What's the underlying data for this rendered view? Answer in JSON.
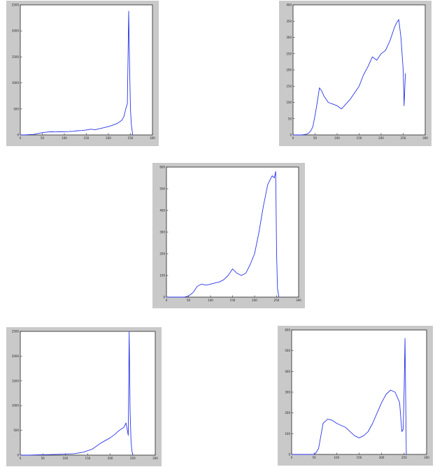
{
  "colors": {
    "line": "#2a35e8",
    "panel": "#c9c9c9",
    "plot_bg": "#ffffff",
    "axis": "#222222"
  },
  "chart_data": [
    {
      "type": "line",
      "xlim": [
        0,
        300
      ],
      "ylim": [
        0,
        2500
      ],
      "xticks": [
        "0",
        "50",
        "100",
        "150",
        "200",
        "250",
        "300"
      ],
      "yticks": [
        "0",
        "500",
        "1000",
        "1500",
        "2000",
        "2500"
      ],
      "x": [
        0,
        10,
        20,
        30,
        40,
        50,
        60,
        70,
        80,
        90,
        100,
        110,
        120,
        130,
        140,
        150,
        160,
        170,
        180,
        190,
        200,
        210,
        220,
        230,
        235,
        240,
        243,
        245,
        246,
        248,
        250,
        252,
        255
      ],
      "y": [
        0,
        0,
        5,
        10,
        25,
        45,
        55,
        60,
        58,
        60,
        62,
        65,
        70,
        80,
        85,
        95,
        110,
        100,
        120,
        140,
        160,
        190,
        220,
        280,
        350,
        520,
        600,
        1700,
        2380,
        1400,
        500,
        200,
        0
      ]
    },
    {
      "type": "line",
      "xlim": [
        0,
        300
      ],
      "ylim": [
        0,
        400
      ],
      "xticks": [
        "0",
        "50",
        "100",
        "150",
        "200",
        "250",
        "300"
      ],
      "yticks": [
        "0",
        "50",
        "100",
        "150",
        "200",
        "250",
        "300",
        "350",
        "400"
      ],
      "x": [
        0,
        10,
        20,
        30,
        35,
        40,
        45,
        50,
        55,
        60,
        65,
        70,
        80,
        90,
        100,
        110,
        120,
        130,
        140,
        150,
        160,
        170,
        180,
        190,
        200,
        210,
        220,
        230,
        235,
        240,
        245,
        250,
        252,
        255
      ],
      "y": [
        0,
        0,
        0,
        2,
        5,
        12,
        25,
        60,
        100,
        145,
        135,
        120,
        100,
        95,
        90,
        80,
        95,
        110,
        130,
        150,
        185,
        210,
        240,
        230,
        250,
        260,
        290,
        330,
        345,
        355,
        300,
        200,
        90,
        190
      ]
    },
    {
      "type": "line",
      "xlim": [
        0,
        300
      ],
      "ylim": [
        0,
        600
      ],
      "xticks": [
        "0",
        "50",
        "100",
        "150",
        "200",
        "250",
        "300"
      ],
      "yticks": [
        "0",
        "100",
        "200",
        "300",
        "400",
        "500",
        "600"
      ],
      "x": [
        0,
        20,
        40,
        50,
        60,
        70,
        80,
        90,
        100,
        110,
        120,
        130,
        140,
        150,
        155,
        160,
        170,
        180,
        190,
        200,
        210,
        220,
        230,
        240,
        245,
        248,
        250,
        252,
        255
      ],
      "y": [
        0,
        0,
        0,
        5,
        20,
        50,
        60,
        55,
        60,
        65,
        70,
        80,
        100,
        130,
        120,
        110,
        100,
        110,
        150,
        200,
        300,
        420,
        520,
        560,
        550,
        580,
        200,
        40,
        0
      ]
    },
    {
      "type": "line",
      "xlim": [
        0,
        300
      ],
      "ylim": [
        0,
        2500
      ],
      "xticks": [
        "0",
        "50",
        "100",
        "150",
        "200",
        "250",
        "300"
      ],
      "yticks": [
        "0",
        "500",
        "1000",
        "1500",
        "2000",
        "2500"
      ],
      "x": [
        0,
        20,
        40,
        60,
        80,
        100,
        120,
        140,
        160,
        180,
        190,
        200,
        210,
        220,
        230,
        235,
        240,
        242,
        244,
        246,
        248,
        250
      ],
      "y": [
        0,
        0,
        5,
        10,
        15,
        20,
        30,
        60,
        120,
        250,
        300,
        350,
        420,
        500,
        560,
        650,
        400,
        2500,
        900,
        300,
        100,
        0
      ]
    },
    {
      "type": "line",
      "xlim": [
        0,
        300
      ],
      "ylim": [
        0,
        600
      ],
      "xticks": [
        "0",
        "50",
        "100",
        "150",
        "200",
        "250",
        "300"
      ],
      "yticks": [
        "0",
        "100",
        "200",
        "300",
        "400",
        "500",
        "600"
      ],
      "x": [
        0,
        40,
        50,
        55,
        60,
        65,
        70,
        80,
        90,
        100,
        110,
        120,
        130,
        140,
        150,
        160,
        170,
        180,
        190,
        200,
        210,
        220,
        230,
        240,
        245,
        248,
        250,
        252,
        255
      ],
      "y": [
        0,
        0,
        0,
        10,
        30,
        90,
        150,
        170,
        165,
        150,
        140,
        130,
        110,
        90,
        80,
        90,
        110,
        150,
        200,
        250,
        290,
        310,
        300,
        250,
        110,
        120,
        300,
        560,
        0
      ]
    }
  ]
}
